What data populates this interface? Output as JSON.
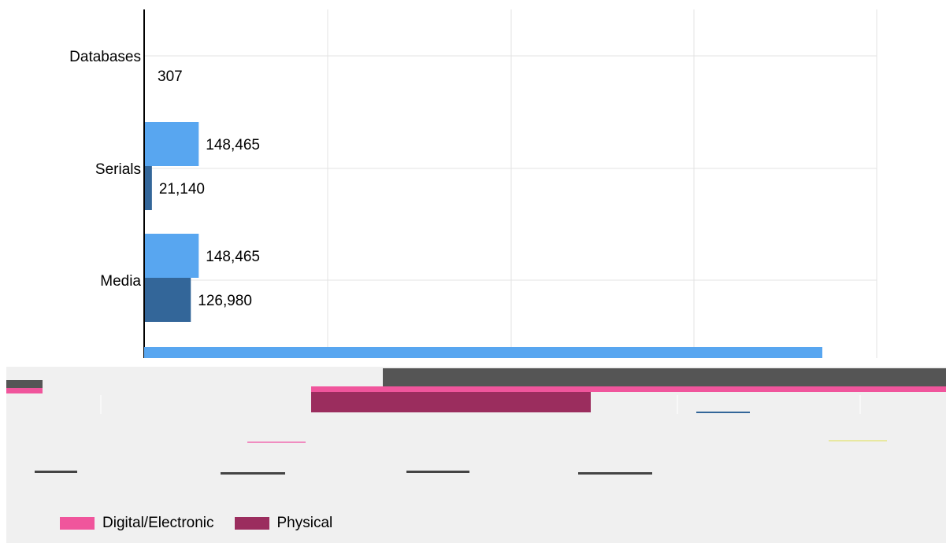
{
  "chart_data": {
    "type": "bar",
    "orientation": "horizontal",
    "categories": [
      "Databases",
      "Serials",
      "Media"
    ],
    "series": [
      {
        "color": "#58a6f0",
        "values": [
          null,
          148465,
          148465
        ]
      },
      {
        "color": "#336699",
        "values": [
          307,
          21140,
          126980
        ]
      }
    ],
    "data_labels": [
      {
        "category": "Databases",
        "series": 1,
        "text": "307"
      },
      {
        "category": "Serials",
        "series": 0,
        "text": "148,465"
      },
      {
        "category": "Serials",
        "series": 1,
        "text": "21,140"
      },
      {
        "category": "Media",
        "series": 0,
        "text": "148,465"
      },
      {
        "category": "Media",
        "series": 1,
        "text": "126,980"
      }
    ],
    "xlim": [
      0,
      2000000
    ],
    "grid": true,
    "legend_position": "bottom-left"
  },
  "legend": {
    "items": [
      {
        "label": "Digital/Electronic",
        "color": "#f0559c"
      },
      {
        "label": "Physical",
        "color": "#9b2d5e"
      }
    ]
  }
}
